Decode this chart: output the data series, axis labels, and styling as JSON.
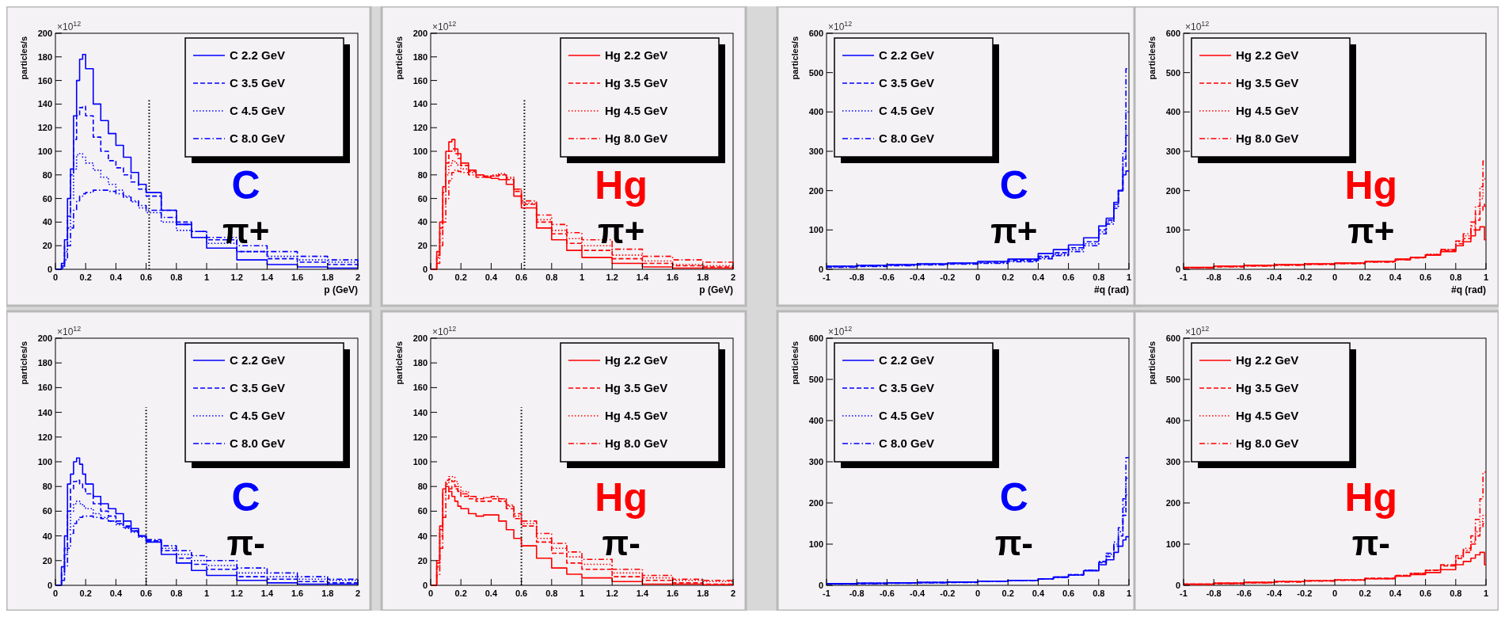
{
  "chart_data": [
    {
      "type": "step",
      "ylabel": "particles/s",
      "xlabel": "p (GeV)",
      "xlim": [
        0,
        2
      ],
      "xticks": [
        0,
        0.2,
        0.4,
        0.6,
        0.8,
        1,
        1.2,
        1.4,
        1.6,
        1.8,
        2
      ],
      "ylim": [
        0,
        200
      ],
      "yticks": [
        0,
        20,
        40,
        60,
        80,
        100,
        120,
        140,
        160,
        180,
        200
      ],
      "legend": "top right",
      "annotations": [
        "×10$^{12}$",
        "C",
        "π+"
      ],
      "ref_lines": [
        {
          "axis": "x",
          "value": 0.62,
          "color": "#000000",
          "line_style": "dotted"
        }
      ],
      "x": [
        0,
        0.04,
        0.06,
        0.08,
        0.1,
        0.12,
        0.14,
        0.16,
        0.18,
        0.2,
        0.25,
        0.3,
        0.35,
        0.4,
        0.45,
        0.5,
        0.55,
        0.6,
        0.7,
        0.8,
        0.9,
        1.0,
        1.2,
        1.4,
        1.6,
        1.8,
        2.0
      ],
      "series": [
        {
          "name": "C 2.2 GeV",
          "color": "#0000ff",
          "line_style": "solid",
          "values": [
            0,
            5,
            25,
            60,
            85,
            130,
            160,
            178,
            182,
            170,
            140,
            126,
            115,
            105,
            95,
            82,
            72,
            65,
            50,
            38,
            27,
            18,
            8,
            4,
            2,
            1,
            1
          ]
        },
        {
          "name": "C 3.5 GeV",
          "color": "#0000ff",
          "line_style": "dashed",
          "values": [
            0,
            3,
            20,
            45,
            80,
            110,
            130,
            137,
            138,
            130,
            112,
            100,
            92,
            86,
            80,
            74,
            68,
            62,
            50,
            40,
            32,
            25,
            15,
            9,
            6,
            4,
            3
          ]
        },
        {
          "name": "C 4.5 GeV",
          "color": "#0000ff",
          "line_style": "dotted",
          "values": [
            0,
            2,
            15,
            35,
            60,
            85,
            97,
            98,
            95,
            90,
            84,
            78,
            72,
            67,
            62,
            57,
            52,
            48,
            40,
            33,
            27,
            22,
            15,
            11,
            8,
            6,
            5
          ]
        },
        {
          "name": "C 8.0 GeV",
          "color": "#0000ff",
          "line_style": "dashdot",
          "values": [
            0,
            1,
            8,
            20,
            35,
            50,
            58,
            62,
            64,
            65,
            67,
            67,
            66,
            64,
            61,
            58,
            54,
            50,
            44,
            38,
            32,
            27,
            20,
            15,
            11,
            8,
            6
          ]
        }
      ]
    },
    {
      "type": "step",
      "ylabel": "particles/s",
      "xlabel": "p (GeV)",
      "xlim": [
        0,
        2
      ],
      "xticks": [
        0,
        0.2,
        0.4,
        0.6,
        0.8,
        1,
        1.2,
        1.4,
        1.6,
        1.8,
        2
      ],
      "ylim": [
        0,
        200
      ],
      "yticks": [
        0,
        20,
        40,
        60,
        80,
        100,
        120,
        140,
        160,
        180,
        200
      ],
      "legend": "top right",
      "annotations": [
        "×10$^{12}$",
        "Hg",
        "π+"
      ],
      "ref_lines": [
        {
          "axis": "x",
          "value": 0.62,
          "color": "#000000",
          "line_style": "dotted"
        }
      ],
      "x": [
        0,
        0.04,
        0.06,
        0.08,
        0.1,
        0.12,
        0.14,
        0.16,
        0.18,
        0.2,
        0.25,
        0.3,
        0.35,
        0.4,
        0.45,
        0.5,
        0.55,
        0.6,
        0.7,
        0.8,
        0.9,
        1.0,
        1.2,
        1.4,
        1.6,
        1.8,
        2.0
      ],
      "series": [
        {
          "name": "Hg 2.2 GeV",
          "color": "#ff0000",
          "line_style": "solid",
          "values": [
            0,
            15,
            40,
            70,
            100,
            108,
            110,
            102,
            98,
            90,
            84,
            80,
            78,
            77,
            76,
            72,
            62,
            52,
            35,
            25,
            16,
            10,
            5,
            2,
            1,
            1,
            0.5
          ]
        },
        {
          "name": "Hg 3.5 GeV",
          "color": "#ff0000",
          "line_style": "dashed",
          "values": [
            0,
            12,
            35,
            65,
            90,
            100,
            102,
            98,
            94,
            88,
            83,
            80,
            79,
            79,
            80,
            76,
            66,
            55,
            40,
            30,
            22,
            16,
            9,
            5,
            3,
            2,
            1
          ]
        },
        {
          "name": "Hg 4.5 GeV",
          "color": "#ff0000",
          "line_style": "dotted",
          "values": [
            0,
            10,
            30,
            55,
            80,
            88,
            92,
            90,
            88,
            85,
            82,
            80,
            79,
            80,
            81,
            78,
            68,
            56,
            42,
            33,
            26,
            20,
            12,
            7,
            4,
            3,
            2
          ]
        },
        {
          "name": "Hg 8.0 GeV",
          "color": "#ff0000",
          "line_style": "dashdot",
          "values": [
            0,
            5,
            20,
            40,
            60,
            75,
            82,
            84,
            83,
            82,
            80,
            78,
            78,
            79,
            80,
            77,
            68,
            58,
            46,
            38,
            31,
            25,
            17,
            11,
            8,
            6,
            4
          ]
        }
      ]
    },
    {
      "type": "step",
      "ylabel": "particles/s",
      "xlabel": "#q (rad)",
      "xlim": [
        -1,
        1
      ],
      "xticks": [
        -1,
        -0.8,
        -0.6,
        -0.4,
        -0.2,
        0,
        0.2,
        0.4,
        0.6,
        0.8,
        1
      ],
      "ylim": [
        0,
        600
      ],
      "yticks": [
        0,
        100,
        200,
        300,
        400,
        500,
        600
      ],
      "legend": "top left",
      "annotations": [
        "×10$^{12}$",
        "C",
        "π+"
      ],
      "x": [
        -1,
        -0.8,
        -0.6,
        -0.4,
        -0.2,
        0,
        0.2,
        0.4,
        0.5,
        0.6,
        0.7,
        0.8,
        0.85,
        0.9,
        0.93,
        0.96,
        0.98,
        0.99,
        1.0
      ],
      "series": [
        {
          "name": "C 2.2 GeV",
          "color": "#0000ff",
          "line_style": "solid",
          "values": [
            8,
            10,
            12,
            14,
            16,
            20,
            26,
            40,
            50,
            62,
            80,
            110,
            130,
            170,
            200,
            240,
            250,
            250,
            250
          ]
        },
        {
          "name": "C 3.5 GeV",
          "color": "#0000ff",
          "line_style": "dashed",
          "values": [
            7,
            9,
            11,
            13,
            15,
            18,
            23,
            33,
            42,
            55,
            70,
            100,
            125,
            165,
            200,
            260,
            340,
            340,
            340
          ]
        },
        {
          "name": "C 4.5 GeV",
          "color": "#0000ff",
          "line_style": "dotted",
          "values": [
            6,
            8,
            10,
            12,
            14,
            16,
            21,
            30,
            38,
            50,
            65,
            95,
            120,
            160,
            200,
            280,
            400,
            400,
            400
          ]
        },
        {
          "name": "C 8.0 GeV",
          "color": "#0000ff",
          "line_style": "dashdot",
          "values": [
            5,
            7,
            9,
            11,
            13,
            15,
            19,
            27,
            35,
            45,
            60,
            90,
            115,
            155,
            200,
            300,
            510,
            510,
            510
          ]
        }
      ]
    },
    {
      "type": "step",
      "ylabel": "particles/s",
      "xlabel": "#q (rad)",
      "xlim": [
        -1,
        1
      ],
      "xticks": [
        -1,
        -0.8,
        -0.6,
        -0.4,
        -0.2,
        0,
        0.2,
        0.4,
        0.6,
        0.8,
        1
      ],
      "ylim": [
        0,
        600
      ],
      "yticks": [
        0,
        100,
        200,
        300,
        400,
        500,
        600
      ],
      "legend": "top left",
      "annotations": [
        "×10$^{12}$",
        "Hg",
        "π+"
      ],
      "x": [
        -1,
        -0.8,
        -0.6,
        -0.4,
        -0.2,
        0,
        0.2,
        0.4,
        0.5,
        0.6,
        0.7,
        0.8,
        0.85,
        0.9,
        0.93,
        0.96,
        0.98,
        0.99,
        1.0
      ],
      "series": [
        {
          "name": "Hg 2.2 GeV",
          "color": "#ff0000",
          "line_style": "solid",
          "values": [
            5,
            8,
            10,
            12,
            14,
            16,
            20,
            26,
            30,
            36,
            45,
            60,
            70,
            85,
            100,
            108,
            108,
            75,
            75
          ]
        },
        {
          "name": "Hg 3.5 GeV",
          "color": "#ff0000",
          "line_style": "dashed",
          "values": [
            4,
            7,
            9,
            11,
            13,
            15,
            19,
            25,
            30,
            37,
            47,
            65,
            78,
            100,
            125,
            150,
            165,
            160,
            160
          ]
        },
        {
          "name": "Hg 4.5 GeV",
          "color": "#ff0000",
          "line_style": "dotted",
          "values": [
            4,
            7,
            9,
            11,
            13,
            15,
            19,
            25,
            30,
            38,
            50,
            70,
            85,
            110,
            140,
            180,
            230,
            230,
            230
          ]
        },
        {
          "name": "Hg 8.0 GeV",
          "color": "#ff0000",
          "line_style": "dashdot",
          "values": [
            3,
            6,
            8,
            10,
            12,
            14,
            18,
            24,
            29,
            37,
            50,
            72,
            90,
            120,
            160,
            210,
            275,
            275,
            275
          ]
        }
      ]
    },
    {
      "type": "step",
      "ylabel": "particles/s",
      "xlim": [
        0,
        2
      ],
      "xticks": [
        0,
        0.2,
        0.4,
        0.6,
        0.8,
        1,
        1.2,
        1.4,
        1.6,
        1.8,
        2
      ],
      "ylim": [
        0,
        200
      ],
      "yticks": [
        0,
        20,
        40,
        60,
        80,
        100,
        120,
        140,
        160,
        180,
        200
      ],
      "legend": "top right",
      "annotations": [
        "×10$^{12}$",
        "C",
        "π-"
      ],
      "ref_lines": [
        {
          "axis": "x",
          "value": 0.6,
          "color": "#000000",
          "line_style": "dotted"
        }
      ],
      "x": [
        0,
        0.04,
        0.06,
        0.08,
        0.1,
        0.12,
        0.14,
        0.16,
        0.18,
        0.2,
        0.25,
        0.3,
        0.35,
        0.4,
        0.45,
        0.5,
        0.55,
        0.6,
        0.7,
        0.8,
        0.9,
        1.0,
        1.2,
        1.4,
        1.6,
        1.8,
        2.0
      ],
      "series": [
        {
          "name": "C 2.2 GeV",
          "color": "#0000ff",
          "line_style": "solid",
          "values": [
            0,
            15,
            40,
            82,
            90,
            100,
            103,
            98,
            90,
            82,
            72,
            66,
            62,
            58,
            52,
            46,
            40,
            35,
            25,
            18,
            12,
            8,
            4,
            2,
            1,
            1,
            0.5
          ]
        },
        {
          "name": "C 3.5 GeV",
          "color": "#0000ff",
          "line_style": "dashed",
          "values": [
            0,
            10,
            30,
            60,
            78,
            84,
            85,
            82,
            78,
            74,
            66,
            60,
            56,
            52,
            48,
            44,
            40,
            36,
            28,
            22,
            17,
            13,
            7,
            5,
            3,
            2,
            1
          ]
        },
        {
          "name": "C 4.5 GeV",
          "color": "#0000ff",
          "line_style": "dotted",
          "values": [
            0,
            8,
            25,
            45,
            60,
            66,
            68,
            66,
            64,
            62,
            58,
            55,
            52,
            49,
            46,
            43,
            39,
            36,
            30,
            25,
            20,
            16,
            10,
            7,
            5,
            4,
            3
          ]
        },
        {
          "name": "C 8.0 GeV",
          "color": "#0000ff",
          "line_style": "dashdot",
          "values": [
            0,
            4,
            15,
            30,
            42,
            50,
            53,
            55,
            56,
            56,
            55,
            54,
            52,
            50,
            47,
            44,
            40,
            37,
            32,
            28,
            24,
            20,
            14,
            10,
            7,
            5,
            4
          ]
        }
      ]
    },
    {
      "type": "step",
      "ylabel": "particles/s",
      "xlim": [
        0,
        2
      ],
      "xticks": [
        0,
        0.2,
        0.4,
        0.6,
        0.8,
        1,
        1.2,
        1.4,
        1.6,
        1.8,
        2
      ],
      "ylim": [
        0,
        200
      ],
      "yticks": [
        0,
        20,
        40,
        60,
        80,
        100,
        120,
        140,
        160,
        180,
        200
      ],
      "legend": "top right",
      "annotations": [
        "×10$^{12}$",
        "Hg",
        "π-"
      ],
      "ref_lines": [
        {
          "axis": "x",
          "value": 0.6,
          "color": "#000000",
          "line_style": "dotted"
        }
      ],
      "x": [
        0,
        0.04,
        0.06,
        0.08,
        0.1,
        0.12,
        0.14,
        0.16,
        0.18,
        0.2,
        0.25,
        0.3,
        0.35,
        0.4,
        0.45,
        0.5,
        0.55,
        0.6,
        0.7,
        0.8,
        0.9,
        1.0,
        1.2,
        1.4,
        1.6,
        1.8,
        2.0
      ],
      "series": [
        {
          "name": "Hg 2.2 GeV",
          "color": "#ff0000",
          "line_style": "solid",
          "values": [
            0,
            20,
            48,
            78,
            80,
            76,
            72,
            68,
            64,
            62,
            58,
            56,
            57,
            57,
            52,
            45,
            38,
            32,
            22,
            14,
            9,
            6,
            3,
            1,
            1,
            0.5,
            0
          ]
        },
        {
          "name": "Hg 3.5 GeV",
          "color": "#ff0000",
          "line_style": "dashed",
          "values": [
            0,
            18,
            45,
            75,
            85,
            86,
            84,
            80,
            76,
            72,
            70,
            68,
            68,
            70,
            68,
            62,
            54,
            48,
            35,
            26,
            18,
            13,
            7,
            4,
            2,
            1,
            1
          ]
        },
        {
          "name": "Hg 4.5 GeV",
          "color": "#ff0000",
          "line_style": "dotted",
          "values": [
            0,
            15,
            40,
            70,
            82,
            88,
            88,
            84,
            80,
            76,
            72,
            70,
            71,
            72,
            70,
            64,
            56,
            50,
            38,
            30,
            23,
            17,
            10,
            6,
            4,
            3,
            2
          ]
        },
        {
          "name": "Hg 8.0 GeV",
          "color": "#ff0000",
          "line_style": "dashdot",
          "values": [
            0,
            8,
            30,
            55,
            70,
            78,
            80,
            78,
            76,
            74,
            72,
            70,
            71,
            72,
            70,
            65,
            58,
            52,
            42,
            34,
            27,
            21,
            13,
            8,
            5,
            4,
            3
          ]
        }
      ]
    },
    {
      "type": "step",
      "ylabel": "particles/s",
      "xlim": [
        -1,
        1
      ],
      "xticks": [
        -1,
        -0.8,
        -0.6,
        -0.4,
        -0.2,
        0,
        0.2,
        0.4,
        0.6,
        0.8,
        1
      ],
      "ylim": [
        0,
        600
      ],
      "yticks": [
        0,
        100,
        200,
        300,
        400,
        500,
        600
      ],
      "legend": "top left",
      "annotations": [
        "×10$^{12}$",
        "C",
        "π-"
      ],
      "x": [
        -1,
        -0.8,
        -0.6,
        -0.4,
        -0.2,
        0,
        0.2,
        0.4,
        0.5,
        0.6,
        0.7,
        0.8,
        0.85,
        0.9,
        0.93,
        0.96,
        0.98,
        0.99,
        1.0
      ],
      "series": [
        {
          "name": "C 2.2 GeV",
          "color": "#0000ff",
          "line_style": "solid",
          "values": [
            4,
            5,
            6,
            7,
            8,
            10,
            12,
            16,
            20,
            25,
            35,
            50,
            62,
            80,
            95,
            110,
            118,
            118,
            118
          ]
        },
        {
          "name": "C 3.5 GeV",
          "color": "#0000ff",
          "line_style": "dashed",
          "values": [
            4,
            5,
            6,
            7,
            8,
            10,
            12,
            16,
            20,
            26,
            36,
            55,
            70,
            95,
            120,
            170,
            220,
            220,
            220
          ]
        },
        {
          "name": "C 4.5 GeV",
          "color": "#0000ff",
          "line_style": "dotted",
          "values": [
            4,
            5,
            6,
            7,
            8,
            10,
            12,
            16,
            20,
            26,
            37,
            57,
            75,
            100,
            130,
            190,
            260,
            260,
            260
          ]
        },
        {
          "name": "C 8.0 GeV",
          "color": "#0000ff",
          "line_style": "dashdot",
          "values": [
            3,
            4,
            5,
            6,
            7,
            9,
            11,
            15,
            19,
            25,
            37,
            58,
            78,
            105,
            140,
            210,
            310,
            310,
            310
          ]
        }
      ]
    },
    {
      "type": "step",
      "ylabel": "particles/s",
      "xlim": [
        -1,
        1
      ],
      "xticks": [
        -1,
        -0.8,
        -0.6,
        -0.4,
        -0.2,
        0,
        0.2,
        0.4,
        0.6,
        0.8,
        1
      ],
      "ylim": [
        0,
        600
      ],
      "yticks": [
        0,
        100,
        200,
        300,
        400,
        500,
        600
      ],
      "legend": "top left",
      "annotations": [
        "×10$^{12}$",
        "Hg",
        "π-"
      ],
      "x": [
        -1,
        -0.8,
        -0.6,
        -0.4,
        -0.2,
        0,
        0.2,
        0.4,
        0.5,
        0.6,
        0.7,
        0.8,
        0.85,
        0.9,
        0.93,
        0.96,
        0.98,
        0.99,
        1.0
      ],
      "series": [
        {
          "name": "Hg 2.2 GeV",
          "color": "#ff0000",
          "line_style": "solid",
          "values": [
            3,
            5,
            7,
            9,
            11,
            13,
            16,
            22,
            26,
            31,
            38,
            50,
            58,
            66,
            74,
            80,
            80,
            50,
            50
          ]
        },
        {
          "name": "Hg 3.5 GeV",
          "color": "#ff0000",
          "line_style": "dashed",
          "values": [
            3,
            5,
            7,
            9,
            11,
            13,
            17,
            24,
            29,
            36,
            47,
            65,
            80,
            100,
            120,
            140,
            150,
            150,
            150
          ]
        },
        {
          "name": "Hg 4.5 GeV",
          "color": "#ff0000",
          "line_style": "dotted",
          "values": [
            3,
            5,
            7,
            9,
            11,
            13,
            17,
            24,
            29,
            37,
            48,
            68,
            85,
            105,
            130,
            155,
            170,
            170,
            170
          ]
        },
        {
          "name": "Hg 8.0 GeV",
          "color": "#ff0000",
          "line_style": "dashdot",
          "values": [
            2,
            4,
            6,
            8,
            10,
            12,
            16,
            23,
            29,
            37,
            50,
            72,
            90,
            120,
            160,
            210,
            275,
            275,
            275
          ]
        }
      ]
    }
  ]
}
